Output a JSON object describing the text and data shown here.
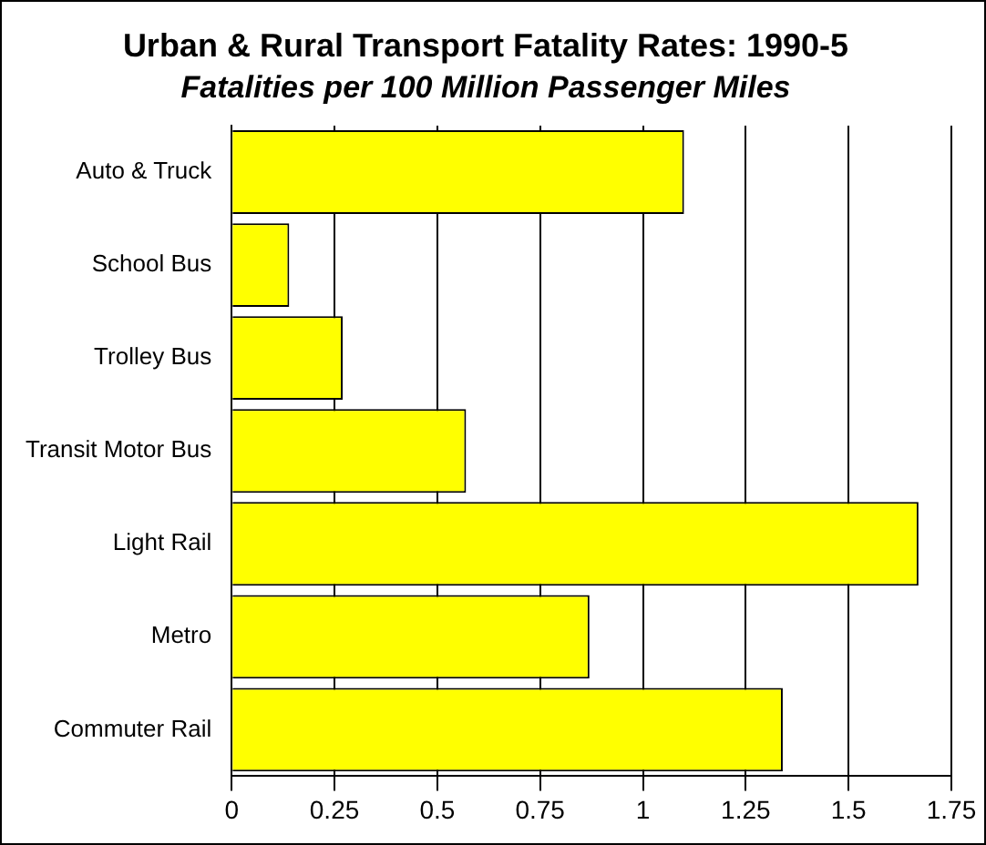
{
  "chart_data": {
    "type": "bar",
    "orientation": "horizontal",
    "title": "Urban & Rural Transport Fatality Rates: 1990-5",
    "subtitle": "Fatalities per 100 Million Passenger Miles",
    "categories": [
      "Auto & Truck",
      "School Bus",
      "Trolley Bus",
      "Transit Motor Bus",
      "Light Rail",
      "Metro",
      "Commuter Rail"
    ],
    "values": [
      1.1,
      0.14,
      0.27,
      0.57,
      1.67,
      0.87,
      1.34
    ],
    "color": "#ffff00",
    "xlim": [
      0,
      1.75
    ],
    "xticks": [
      0,
      0.25,
      0.5,
      0.75,
      1,
      1.25,
      1.5,
      1.75
    ],
    "grid": "x",
    "legend": false
  }
}
